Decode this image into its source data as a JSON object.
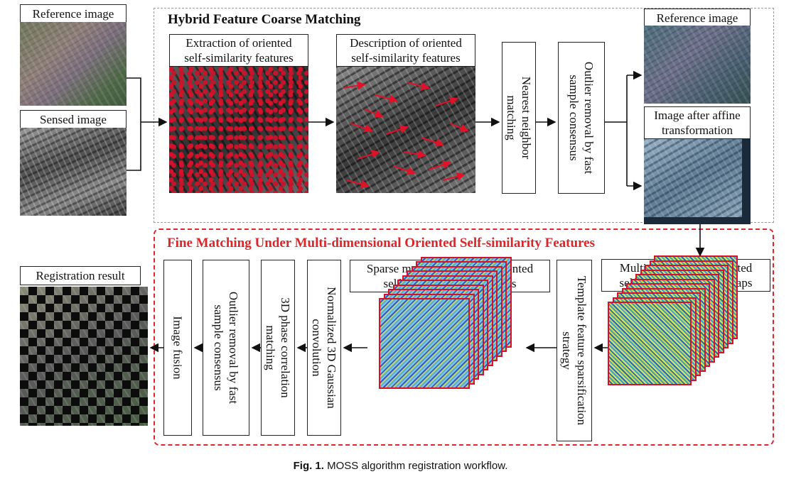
{
  "coarse": {
    "title": "Hybrid Feature Coarse Matching",
    "extraction_label_1": "Extraction of oriented",
    "extraction_label_2": "self-similarity features",
    "description_label_1": "Description of oriented",
    "description_label_2": "self-similarity features",
    "nearest_neighbor": "Nearest neighbor matching",
    "outlier_removal": "Outlier removal by fast sample consensus"
  },
  "inputs": {
    "reference_label": "Reference image",
    "sensed_label": "Sensed image"
  },
  "right_outputs": {
    "reference_label": "Reference image",
    "affine_label_1": "Image after affine",
    "affine_label_2": "transformation"
  },
  "fine": {
    "title": "Fine Matching Under Multi-dimensional Oriented Self-similarity Features",
    "feature_maps_1": "Multi-dimensional oriented",
    "feature_maps_2": "self-similarity feature maps",
    "sparsification": "Template feature sparsification strategy",
    "sparse_maps_1": "Sparse multi-dimensional oriented",
    "sparse_maps_2": "self-similarity feature maps",
    "gaussian": "Normalized 3D Gaussian convolution",
    "phase_correlation": "3D phase correlation matching",
    "outlier_removal": "Outlier removal by fast sample consensus",
    "fusion": "Image fusion",
    "result_label": "Registration result"
  },
  "caption": {
    "fig": "Fig. 1.",
    "text": "MOSS algorithm registration workflow."
  },
  "colors": {
    "fine_border": "#e0262b",
    "fine_title": "#d8262b",
    "coarse_border": "#9a9a9a",
    "feature_red": "#d8102a"
  }
}
